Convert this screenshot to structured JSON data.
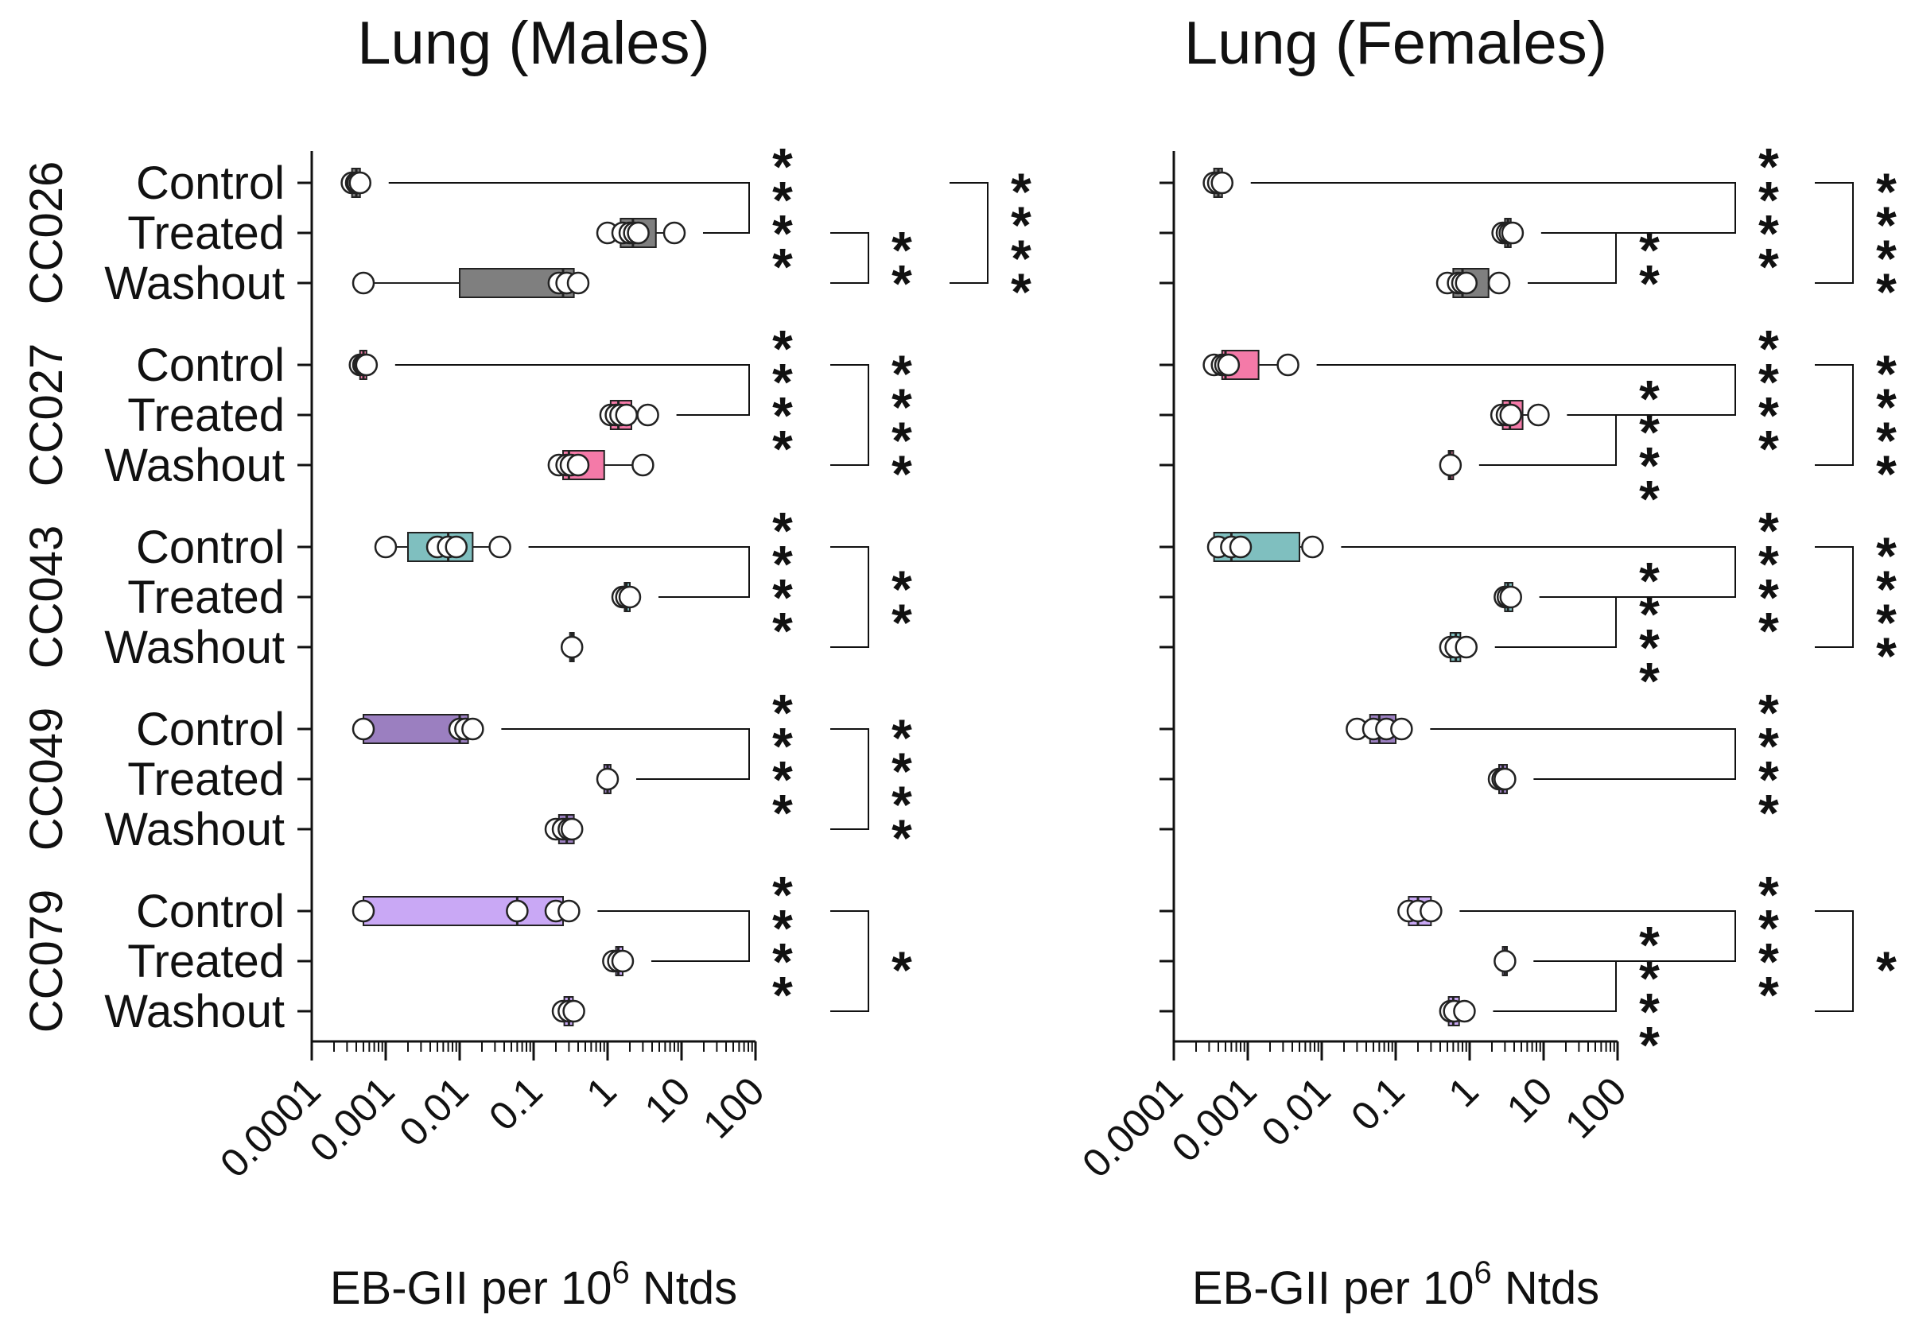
{
  "chart_data": [
    {
      "type": "box",
      "title": "Lung (Males)",
      "xlabel": "EB-GII per 10",
      "xlabel_sup": "6",
      "xlabel_suffix": " Ntds",
      "xscale": "log",
      "xlim": [
        0.0001,
        100
      ],
      "xticks": [
        "0.0001",
        "0.001",
        "0.01",
        "0.1",
        "1",
        "10",
        "100"
      ],
      "groups": [
        {
          "name": "CC026",
          "color": "#7f7f7f",
          "rows": [
            {
              "label": "Control",
              "box": [
                0.00035,
                0.00045
              ],
              "median": 0.0004,
              "points": [
                0.00035,
                0.0004,
                0.00042,
                0.00045
              ]
            },
            {
              "label": "Treated",
              "box": [
                1.5,
                4.5
              ],
              "median": 2.2,
              "points": [
                1.0,
                1.6,
                2.0,
                2.3,
                2.6,
                8.0
              ]
            },
            {
              "label": "Washout",
              "box": [
                0.01,
                0.35
              ],
              "median": 0.25,
              "points": [
                0.0005,
                0.22,
                0.28,
                0.4
              ]
            }
          ]
        },
        {
          "name": "CC027",
          "color": "#f47aa8",
          "rows": [
            {
              "label": "Control",
              "box": [
                0.00045,
                0.00055
              ],
              "median": 0.0005,
              "points": [
                0.00045,
                0.0005,
                0.00052,
                0.00055
              ]
            },
            {
              "label": "Treated",
              "box": [
                1.1,
                2.1
              ],
              "median": 1.4,
              "points": [
                1.1,
                1.3,
                1.5,
                1.8,
                3.5
              ]
            },
            {
              "label": "Washout",
              "box": [
                0.25,
                0.9
              ],
              "median": 0.3,
              "points": [
                0.22,
                0.28,
                0.32,
                0.4,
                3.0
              ]
            }
          ]
        },
        {
          "name": "CC043",
          "color": "#7fbfbf",
          "rows": [
            {
              "label": "Control",
              "box": [
                0.002,
                0.015
              ],
              "median": 0.007,
              "points": [
                0.001,
                0.005,
                0.007,
                0.009,
                0.035
              ]
            },
            {
              "label": "Treated",
              "box": [
                1.7,
                2.0
              ],
              "median": 1.8,
              "points": [
                1.6,
                1.8,
                2.0
              ]
            },
            {
              "label": "Washout",
              "box": [
                0.31,
                0.35
              ],
              "median": 0.33,
              "points": [
                0.33
              ]
            }
          ]
        },
        {
          "name": "CC049",
          "color": "#9b7fc0",
          "rows": [
            {
              "label": "Control",
              "box": [
                0.0005,
                0.013
              ],
              "median": 0.01,
              "points": [
                0.0005,
                0.01,
                0.012,
                0.015
              ]
            },
            {
              "label": "Treated",
              "box": [
                0.9,
                1.1
              ],
              "median": 1.0,
              "points": [
                1.0
              ]
            },
            {
              "label": "Washout",
              "box": [
                0.22,
                0.35
              ],
              "median": 0.28,
              "points": [
                0.2,
                0.25,
                0.3,
                0.33
              ]
            }
          ]
        },
        {
          "name": "CC079",
          "color": "#c9a8f5",
          "rows": [
            {
              "label": "Control",
              "box": [
                0.0005,
                0.25
              ],
              "median": 0.06,
              "points": [
                0.0005,
                0.06,
                0.2,
                0.3
              ]
            },
            {
              "label": "Treated",
              "box": [
                1.3,
                1.6
              ],
              "median": 1.4,
              "points": [
                1.2,
                1.4,
                1.6
              ]
            },
            {
              "label": "Washout",
              "box": [
                0.26,
                0.34
              ],
              "median": 0.3,
              "points": [
                0.25,
                0.3,
                0.35
              ]
            }
          ]
        }
      ],
      "comparisons": [
        {
          "group": 0,
          "from": "Control",
          "to": "Treated",
          "stars": "****",
          "level": 1
        },
        {
          "group": 0,
          "from": "Treated",
          "to": "Washout",
          "stars": "**",
          "level": 2
        },
        {
          "group": 0,
          "from": "Control",
          "to": "Washout",
          "stars": "****",
          "level": 3
        },
        {
          "group": 1,
          "from": "Control",
          "to": "Treated",
          "stars": "****",
          "level": 1
        },
        {
          "group": 1,
          "from": "Control",
          "to": "Washout",
          "stars": "****",
          "level": 2
        },
        {
          "group": 2,
          "from": "Control",
          "to": "Treated",
          "stars": "****",
          "level": 1
        },
        {
          "group": 2,
          "from": "Control",
          "to": "Washout",
          "stars": "**",
          "level": 2
        },
        {
          "group": 3,
          "from": "Control",
          "to": "Treated",
          "stars": "****",
          "level": 1
        },
        {
          "group": 3,
          "from": "Control",
          "to": "Washout",
          "stars": "****",
          "level": 2
        },
        {
          "group": 4,
          "from": "Control",
          "to": "Treated",
          "stars": "****",
          "level": 1
        },
        {
          "group": 4,
          "from": "Control",
          "to": "Washout",
          "stars": "*",
          "level": 2
        }
      ]
    },
    {
      "type": "box",
      "title": "Lung (Females)",
      "xlabel": "EB-GII per 10",
      "xlabel_sup": "6",
      "xlabel_suffix": " Ntds",
      "xscale": "log",
      "xlim": [
        0.0001,
        100
      ],
      "xticks": [
        "0.0001",
        "0.001",
        "0.01",
        "0.1",
        "1",
        "10",
        "100"
      ],
      "groups": [
        {
          "name": "CC026",
          "color": "#7f7f7f",
          "rows": [
            {
              "label": "Control",
              "box": [
                0.00035,
                0.00045
              ],
              "median": 0.0004,
              "points": [
                0.00035,
                0.0004,
                0.00045
              ]
            },
            {
              "label": "Treated",
              "box": [
                3.0,
                3.6
              ],
              "median": 3.3,
              "points": [
                2.8,
                3.2,
                3.5,
                3.8
              ]
            },
            {
              "label": "Washout",
              "box": [
                0.6,
                1.8
              ],
              "median": 0.8,
              "points": [
                0.5,
                0.7,
                0.8,
                0.9,
                2.5
              ]
            }
          ]
        },
        {
          "name": "CC027",
          "color": "#f47aa8",
          "rows": [
            {
              "label": "Control",
              "box": [
                0.00045,
                0.0014
              ],
              "median": 0.0005,
              "points": [
                0.00035,
                0.00045,
                0.0005,
                0.00055,
                0.0035
              ]
            },
            {
              "label": "Treated",
              "box": [
                2.8,
                5.2
              ],
              "median": 3.5,
              "points": [
                2.7,
                3.2,
                3.6,
                8.5
              ]
            },
            {
              "label": "Washout",
              "box": [
                0.52,
                0.6
              ],
              "median": 0.55,
              "points": [
                0.55
              ]
            }
          ]
        },
        {
          "name": "CC043",
          "color": "#7fbfbf",
          "rows": [
            {
              "label": "Control",
              "box": [
                0.00035,
                0.005
              ],
              "median": 0.0006,
              "points": [
                0.0004,
                0.0006,
                0.0008,
                0.0075
              ]
            },
            {
              "label": "Treated",
              "box": [
                3.0,
                3.8
              ],
              "median": 3.3,
              "points": [
                3.0,
                3.3,
                3.6
              ]
            },
            {
              "label": "Washout",
              "box": [
                0.55,
                0.75
              ],
              "median": 0.65,
              "points": [
                0.55,
                0.65,
                0.9
              ]
            }
          ]
        },
        {
          "name": "CC049",
          "color": "#9b7fc0",
          "rows": [
            {
              "label": "Control",
              "box": [
                0.045,
                0.1
              ],
              "median": 0.06,
              "points": [
                0.03,
                0.05,
                0.075,
                0.12
              ]
            },
            {
              "label": "Treated",
              "box": [
                2.5,
                3.2
              ],
              "median": 2.8,
              "points": [
                2.5,
                2.8,
                3.0
              ]
            },
            {
              "label": "Washout",
              "box": null,
              "median": null,
              "points": []
            }
          ]
        },
        {
          "name": "CC079",
          "color": "#c9a8f5",
          "rows": [
            {
              "label": "Control",
              "box": [
                0.15,
                0.3
              ],
              "median": 0.2,
              "points": [
                0.15,
                0.2,
                0.3
              ]
            },
            {
              "label": "Treated",
              "box": [
                2.8,
                3.2
              ],
              "median": 3.0,
              "points": [
                3.0
              ]
            },
            {
              "label": "Washout",
              "box": [
                0.52,
                0.72
              ],
              "median": 0.6,
              "points": [
                0.55,
                0.62,
                0.85
              ]
            }
          ]
        }
      ],
      "comparisons": [
        {
          "group": 0,
          "from": "Control",
          "to": "Treated",
          "stars": "****",
          "level": 1
        },
        {
          "group": 0,
          "from": "Treated",
          "to": "Washout",
          "stars": "**",
          "level": 0
        },
        {
          "group": 0,
          "from": "Control",
          "to": "Washout",
          "stars": "****",
          "level": 2
        },
        {
          "group": 1,
          "from": "Treated",
          "to": "Washout",
          "stars": "****",
          "level": 0
        },
        {
          "group": 1,
          "from": "Control",
          "to": "Treated",
          "stars": "****",
          "level": 1
        },
        {
          "group": 1,
          "from": "Control",
          "to": "Washout",
          "stars": "****",
          "level": 2
        },
        {
          "group": 2,
          "from": "Treated",
          "to": "Washout",
          "stars": "****",
          "level": 0
        },
        {
          "group": 2,
          "from": "Control",
          "to": "Treated",
          "stars": "****",
          "level": 1
        },
        {
          "group": 2,
          "from": "Control",
          "to": "Washout",
          "stars": "****",
          "level": 2
        },
        {
          "group": 3,
          "from": "Control",
          "to": "Treated",
          "stars": "****",
          "level": 1
        },
        {
          "group": 4,
          "from": "Treated",
          "to": "Washout",
          "stars": "****",
          "level": 0
        },
        {
          "group": 4,
          "from": "Control",
          "to": "Treated",
          "stars": "****",
          "level": 1
        },
        {
          "group": 4,
          "from": "Control",
          "to": "Washout",
          "stars": "*",
          "level": 2
        }
      ]
    }
  ]
}
